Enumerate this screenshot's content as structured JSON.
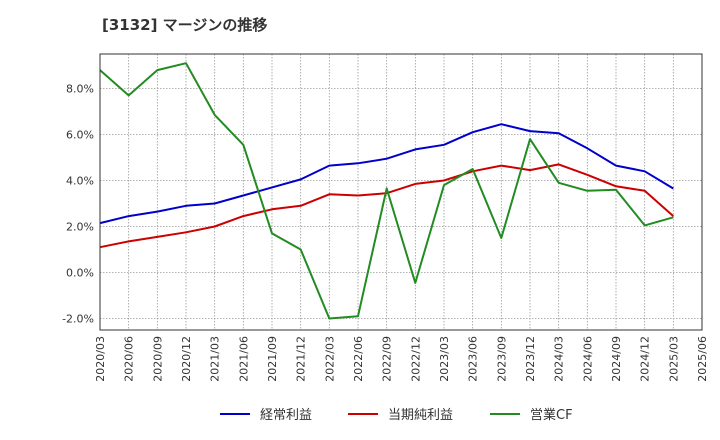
{
  "chart_data": {
    "type": "line",
    "title": "[3132]  マージンの推移",
    "x": [
      "2020/03",
      "2020/06",
      "2020/09",
      "2020/12",
      "2021/03",
      "2021/06",
      "2021/09",
      "2021/12",
      "2022/03",
      "2022/06",
      "2022/09",
      "2022/12",
      "2023/03",
      "2023/06",
      "2023/09",
      "2023/12",
      "2024/03",
      "2024/06",
      "2024/09",
      "2024/12",
      "2025/03",
      "2025/06"
    ],
    "ylim": [
      -2.5,
      9.5
    ],
    "yticks": [
      -2.0,
      0.0,
      2.0,
      4.0,
      6.0,
      8.0
    ],
    "ytick_labels": [
      "-2.0%",
      "0.0%",
      "2.0%",
      "4.0%",
      "6.0%",
      "8.0%"
    ],
    "grid": true,
    "legend_position": "bottom",
    "series": [
      {
        "name": "経常利益",
        "color": "#0000cc",
        "values": [
          2.15,
          2.45,
          2.65,
          2.9,
          3.0,
          3.35,
          3.7,
          4.05,
          4.65,
          4.75,
          4.95,
          5.35,
          5.55,
          6.1,
          6.45,
          6.15,
          6.05,
          5.4,
          4.65,
          4.4,
          3.65,
          null
        ]
      },
      {
        "name": "当期純利益",
        "color": "#cc0000",
        "values": [
          1.1,
          1.35,
          1.55,
          1.75,
          2.0,
          2.45,
          2.75,
          2.9,
          3.4,
          3.35,
          3.45,
          3.85,
          4.0,
          4.4,
          4.65,
          4.45,
          4.7,
          4.25,
          3.75,
          3.55,
          2.45,
          null
        ]
      },
      {
        "name": "営業CF",
        "color": "#228b22",
        "values": [
          8.8,
          7.7,
          8.8,
          9.1,
          6.85,
          5.55,
          1.7,
          1.0,
          -2.0,
          -1.9,
          3.65,
          -0.45,
          3.8,
          4.5,
          1.5,
          5.8,
          3.9,
          3.55,
          3.6,
          2.05,
          2.4,
          null
        ]
      }
    ]
  }
}
